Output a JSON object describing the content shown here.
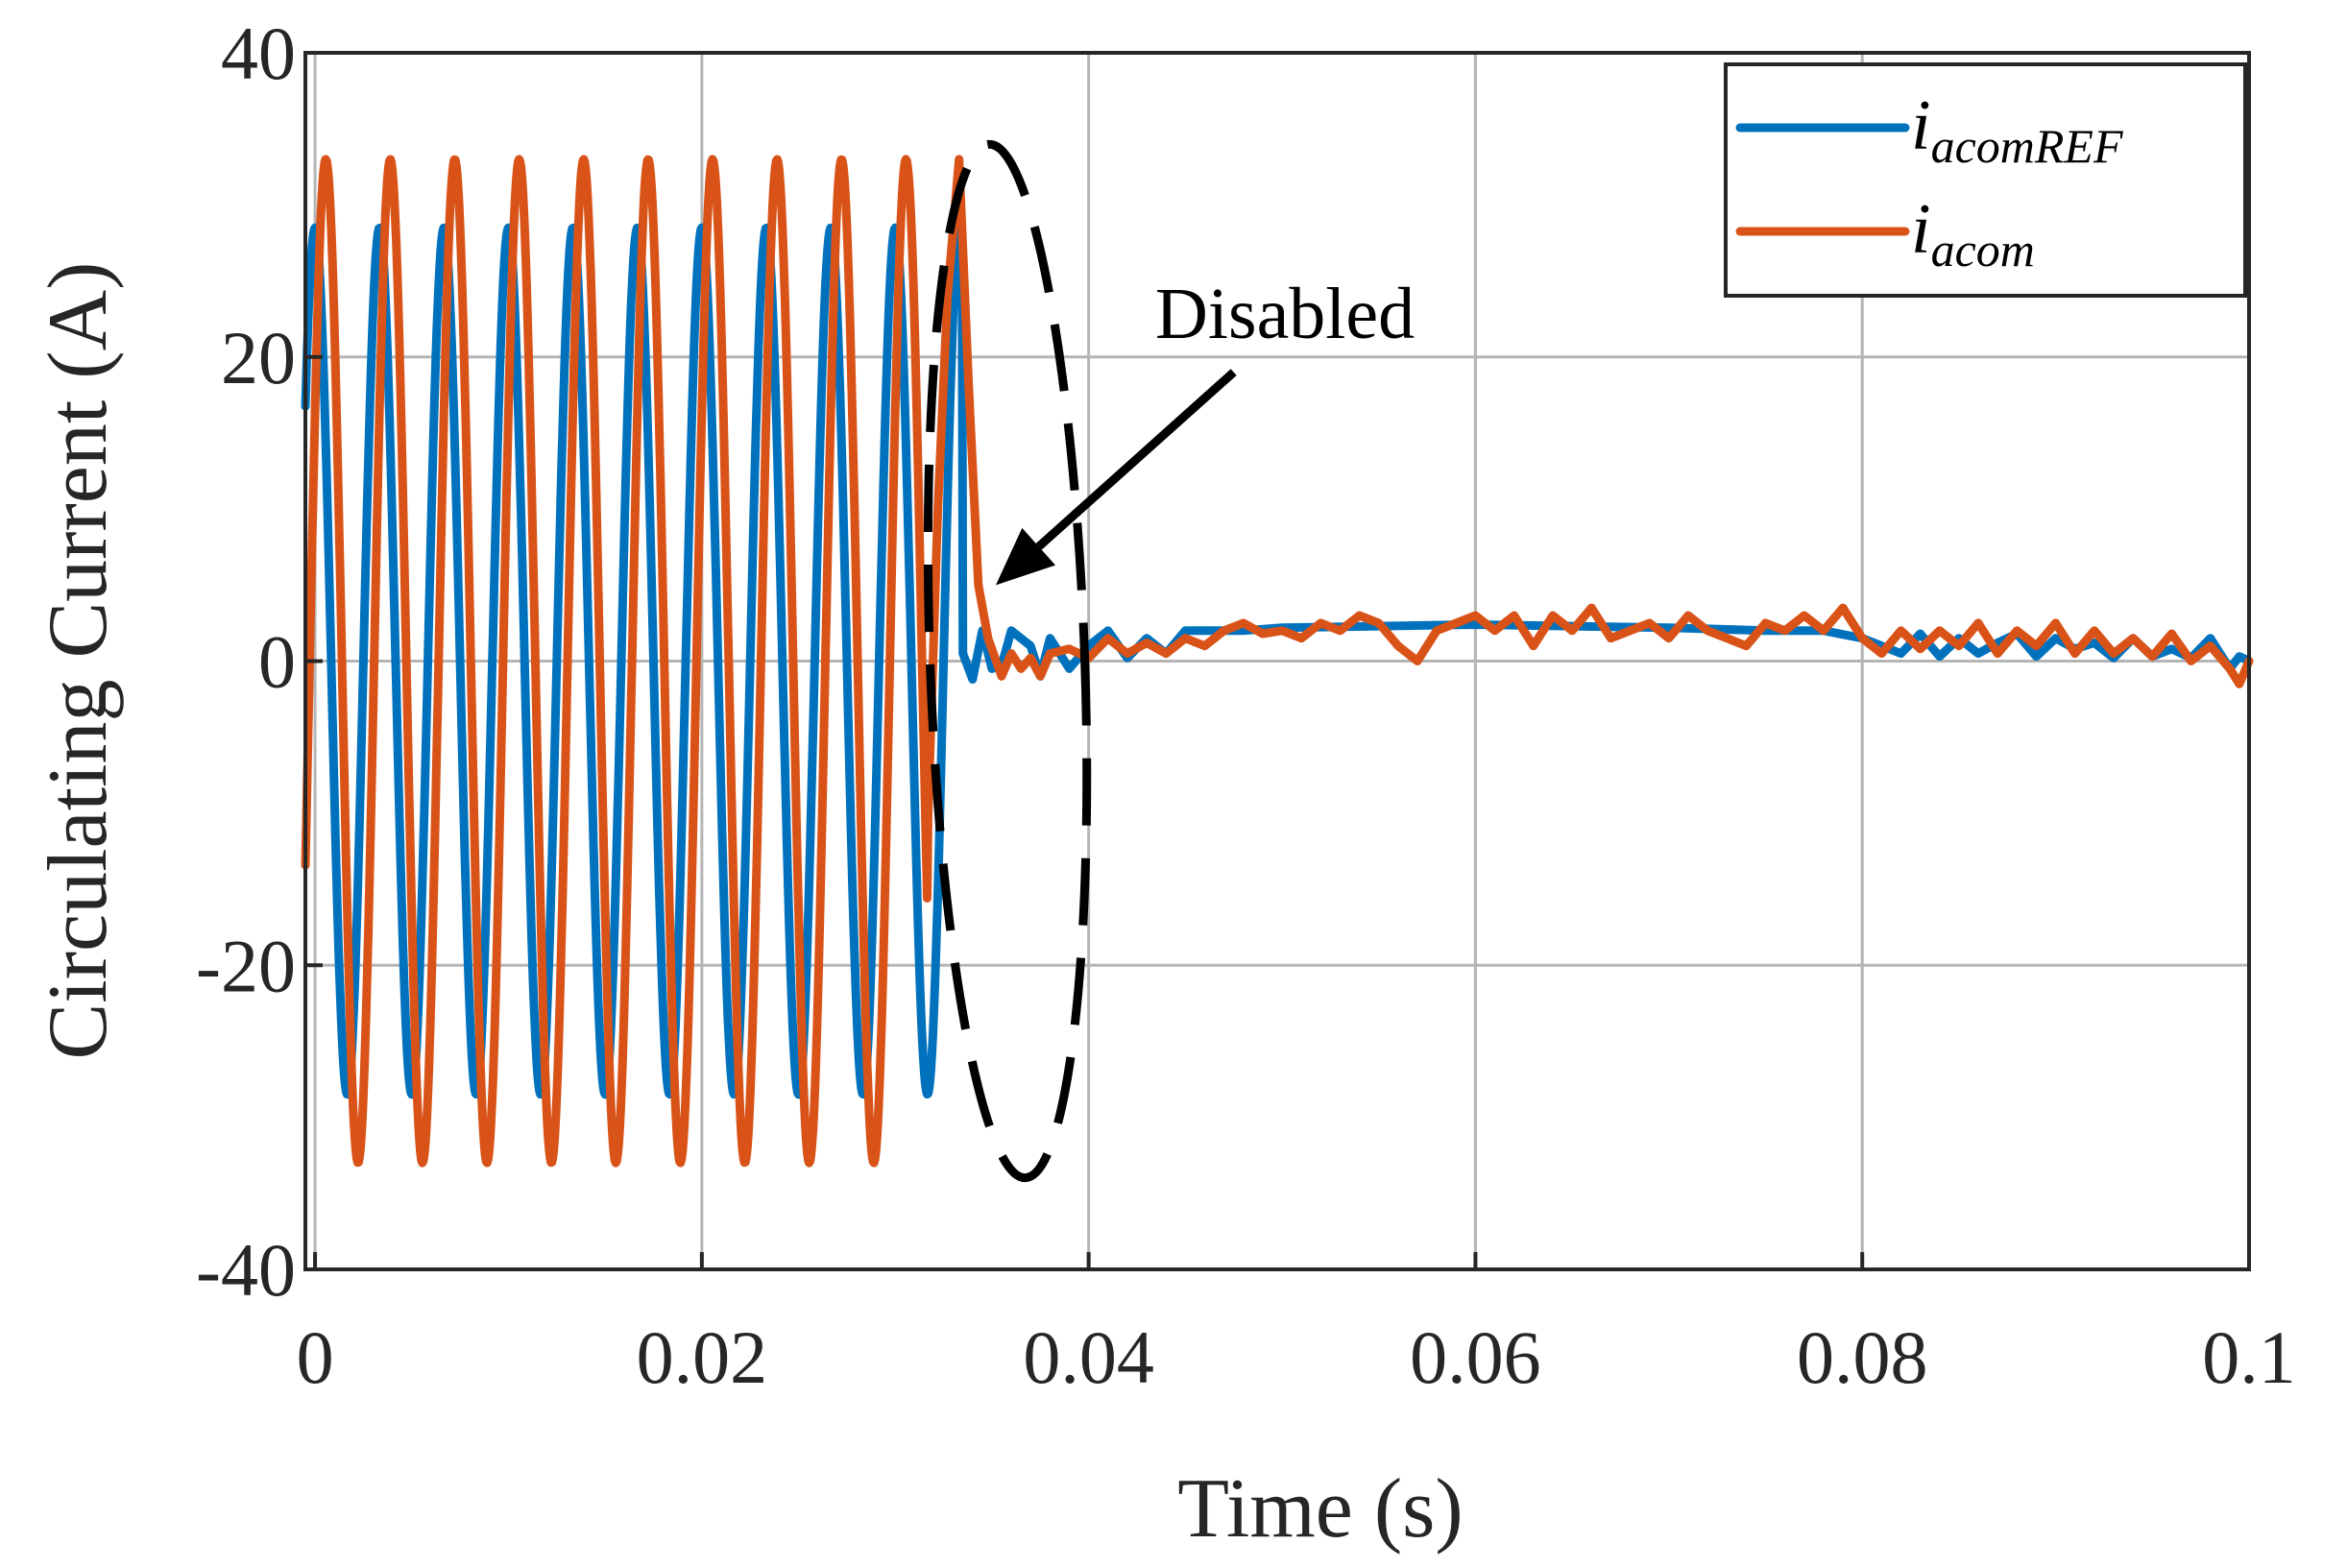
{
  "chart_data": {
    "type": "line",
    "title": "",
    "xlabel": "Time (s)",
    "ylabel": "Circulating Current (A)",
    "xlim": [
      -0.0005,
      0.1
    ],
    "ylim": [
      -40,
      40
    ],
    "xticks": [
      0,
      0.02,
      0.04,
      0.06,
      0.08,
      0.1
    ],
    "xtick_labels": [
      "0",
      "0.02",
      "0.04",
      "0.06",
      "0.08",
      "0.1"
    ],
    "yticks": [
      -40,
      -20,
      0,
      20,
      40
    ],
    "ytick_labels": [
      "-40",
      "-20",
      "0",
      "20",
      "40"
    ],
    "grid": true,
    "legend_position": "top-right",
    "series": [
      {
        "name": "i_acomREF",
        "legend_main": "i",
        "legend_sub": "acomREF",
        "color": "#0072BD",
        "model": {
          "sine_until": 0.0335,
          "amplitude": 28.5,
          "frequency_hz": 300,
          "phase_deg": 90,
          "post": [
            [
              0.0335,
              0.5
            ],
            [
              0.034,
              -1.2
            ],
            [
              0.0345,
              2
            ],
            [
              0.035,
              -0.5
            ],
            [
              0.0355,
              -0.3
            ],
            [
              0.036,
              2
            ],
            [
              0.037,
              1
            ],
            [
              0.0375,
              -1
            ],
            [
              0.038,
              1.5
            ],
            [
              0.039,
              -0.5
            ],
            [
              0.04,
              1
            ],
            [
              0.041,
              2
            ],
            [
              0.042,
              0.2
            ],
            [
              0.043,
              1.5
            ],
            [
              0.044,
              0.5
            ],
            [
              0.045,
              2
            ],
            [
              0.048,
              2
            ],
            [
              0.05,
              2.2
            ],
            [
              0.055,
              2.3
            ],
            [
              0.06,
              2.4
            ],
            [
              0.065,
              2.3
            ],
            [
              0.07,
              2.2
            ],
            [
              0.075,
              2.0
            ],
            [
              0.078,
              2.0
            ],
            [
              0.08,
              1.5
            ],
            [
              0.082,
              0.5
            ],
            [
              0.083,
              1.8
            ],
            [
              0.084,
              0.3
            ],
            [
              0.085,
              1.5
            ],
            [
              0.086,
              0.5
            ],
            [
              0.087,
              1.2
            ],
            [
              0.088,
              1.8
            ],
            [
              0.089,
              0.3
            ],
            [
              0.09,
              1.5
            ],
            [
              0.091,
              0.8
            ],
            [
              0.092,
              1.2
            ],
            [
              0.093,
              0.2
            ],
            [
              0.094,
              1.5
            ],
            [
              0.095,
              0.3
            ],
            [
              0.096,
              0.8
            ],
            [
              0.097,
              0.2
            ],
            [
              0.098,
              1.5
            ],
            [
              0.099,
              -0.5
            ],
            [
              0.0995,
              0.3
            ],
            [
              0.1,
              0.0
            ]
          ]
        }
      },
      {
        "name": "i_acom",
        "legend_main": "i",
        "legend_sub": "acom",
        "color": "#D95319",
        "model": {
          "sine_until": 0.0317,
          "amplitude": 33,
          "frequency_hz": 300,
          "phase_deg": 30,
          "post": [
            [
              0.0317,
              -10
            ],
            [
              0.0322,
              10
            ],
            [
              0.0327,
              24
            ],
            [
              0.0333,
              33
            ],
            [
              0.0338,
              18
            ],
            [
              0.0343,
              5
            ],
            [
              0.0348,
              1.5
            ],
            [
              0.0355,
              -1
            ],
            [
              0.036,
              0.5
            ],
            [
              0.0365,
              -0.5
            ],
            [
              0.037,
              0.2
            ],
            [
              0.0375,
              -1
            ],
            [
              0.038,
              0.5
            ],
            [
              0.039,
              0.8
            ],
            [
              0.04,
              0.2
            ],
            [
              0.041,
              1.5
            ],
            [
              0.042,
              0.5
            ],
            [
              0.043,
              1.2
            ],
            [
              0.044,
              0.5
            ],
            [
              0.045,
              1.5
            ],
            [
              0.046,
              1.0
            ],
            [
              0.047,
              2.0
            ],
            [
              0.048,
              2.5
            ],
            [
              0.049,
              1.8
            ],
            [
              0.05,
              2.0
            ],
            [
              0.051,
              1.5
            ],
            [
              0.052,
              2.5
            ],
            [
              0.053,
              2.0
            ],
            [
              0.054,
              3.0
            ],
            [
              0.055,
              2.5
            ],
            [
              0.056,
              1.0
            ],
            [
              0.057,
              0.0
            ],
            [
              0.058,
              2.0
            ],
            [
              0.059,
              2.5
            ],
            [
              0.06,
              3.0
            ],
            [
              0.061,
              2.0
            ],
            [
              0.062,
              3.0
            ],
            [
              0.063,
              1.0
            ],
            [
              0.064,
              3.0
            ],
            [
              0.065,
              2.0
            ],
            [
              0.066,
              3.5
            ],
            [
              0.067,
              1.5
            ],
            [
              0.068,
              2.0
            ],
            [
              0.069,
              2.5
            ],
            [
              0.07,
              1.5
            ],
            [
              0.071,
              3.0
            ],
            [
              0.072,
              2.0
            ],
            [
              0.073,
              1.5
            ],
            [
              0.074,
              1.0
            ],
            [
              0.075,
              2.5
            ],
            [
              0.076,
              2.0
            ],
            [
              0.077,
              3.0
            ],
            [
              0.078,
              2.0
            ],
            [
              0.079,
              3.5
            ],
            [
              0.08,
              1.5
            ],
            [
              0.081,
              0.5
            ],
            [
              0.082,
              2.0
            ],
            [
              0.083,
              0.8
            ],
            [
              0.084,
              2.0
            ],
            [
              0.085,
              1.0
            ],
            [
              0.086,
              2.5
            ],
            [
              0.087,
              0.5
            ],
            [
              0.088,
              2.0
            ],
            [
              0.089,
              1.0
            ],
            [
              0.09,
              2.5
            ],
            [
              0.091,
              0.5
            ],
            [
              0.092,
              2.0
            ],
            [
              0.093,
              0.5
            ],
            [
              0.094,
              1.5
            ],
            [
              0.095,
              0.3
            ],
            [
              0.096,
              1.8
            ],
            [
              0.097,
              0.0
            ],
            [
              0.098,
              1.0
            ],
            [
              0.099,
              -0.5
            ],
            [
              0.0995,
              -1.5
            ],
            [
              0.1,
              0.0
            ]
          ]
        }
      }
    ],
    "annotations": [
      {
        "text": "Disabled",
        "arrow_from": [
          0.0475,
          19
        ],
        "arrow_to": [
          0.0352,
          5
        ],
        "ellipse": {
          "center": [
            0.0358,
            0
          ],
          "width": 0.008,
          "height": 68,
          "dashed": true
        }
      }
    ]
  }
}
